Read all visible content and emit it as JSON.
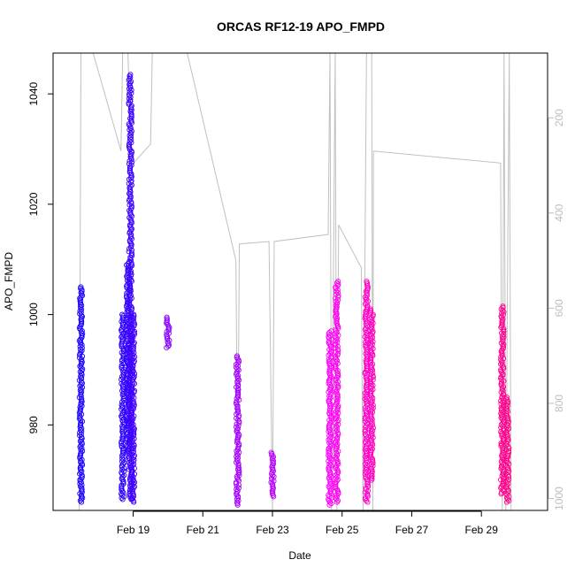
{
  "chart_data": {
    "type": "scatter",
    "title": "ORCAS RF12-19 APO_FMPD",
    "xlabel": "Date",
    "ylabel": "APO_FMPD",
    "x_ticks": [
      "Feb 19",
      "Feb 21",
      "Feb 23",
      "Feb 25",
      "Feb 27",
      "Feb 29"
    ],
    "x_tick_days": [
      19,
      21,
      23,
      25,
      27,
      29
    ],
    "xlim_days": [
      16.7,
      30.9
    ],
    "y_ticks": [
      980,
      1000,
      1020,
      1040
    ],
    "ylim": [
      964.5,
      1047.4
    ],
    "y2_ticks": [
      200,
      400,
      600,
      800,
      1000
    ],
    "y2lim": [
      1025,
      64
    ],
    "y2_reversed": true,
    "y2_label": "",
    "grid": false,
    "legend": "none",
    "secondary_line_color": "#c0c0c0",
    "flights": [
      {
        "day": 17.5,
        "ymin": 966.0,
        "ymax": 1005.0,
        "color": "#1a00ff"
      },
      {
        "day": 18.7,
        "ymin": 966.5,
        "ymax": 1000.0,
        "color": "#2b00ff"
      },
      {
        "day": 18.85,
        "ymin": 975.0,
        "ymax": 1009.5,
        "color": "#3000ff"
      },
      {
        "day": 18.92,
        "ymin": 966.5,
        "ymax": 1043.5,
        "color": "#3a00ff"
      },
      {
        "day": 19.0,
        "ymin": 966.0,
        "ymax": 1000.0,
        "color": "#4400ff"
      },
      {
        "day": 20.0,
        "ymin": 994.0,
        "ymax": 999.5,
        "color": "#8800ff"
      },
      {
        "day": 22.0,
        "ymin": 965.5,
        "ymax": 992.5,
        "color": "#a600ff"
      },
      {
        "day": 23.0,
        "ymin": 967.0,
        "ymax": 975.0,
        "color": "#bb00ff"
      },
      {
        "day": 24.65,
        "ymin": 965.5,
        "ymax": 997.0,
        "color": "#ff00ff"
      },
      {
        "day": 24.85,
        "ymin": 966.0,
        "ymax": 1006.0,
        "color": "#ff00f0"
      },
      {
        "day": 25.7,
        "ymin": 966.0,
        "ymax": 1006.0,
        "color": "#ff00c8"
      },
      {
        "day": 25.85,
        "ymin": 970.0,
        "ymax": 1001.0,
        "color": "#ff00c0"
      },
      {
        "day": 29.6,
        "ymin": 967.5,
        "ymax": 1001.5,
        "color": "#ff0090"
      },
      {
        "day": 29.75,
        "ymin": 966.0,
        "ymax": 985.0,
        "color": "#ff0088"
      }
    ],
    "altitude_trace": [
      [
        17.45,
        1025
      ],
      [
        17.5,
        64
      ],
      [
        17.85,
        64
      ],
      [
        18.65,
        270
      ],
      [
        18.7,
        64
      ],
      [
        18.85,
        64
      ],
      [
        18.95,
        300
      ],
      [
        19.5,
        255
      ],
      [
        19.55,
        64
      ],
      [
        20.55,
        64
      ],
      [
        21.95,
        500
      ],
      [
        22.0,
        965
      ],
      [
        22.05,
        465
      ],
      [
        22.9,
        460
      ],
      [
        23.0,
        1025
      ],
      [
        23.05,
        460
      ],
      [
        24.6,
        445
      ],
      [
        24.65,
        64
      ],
      [
        24.7,
        1025
      ],
      [
        24.8,
        64
      ],
      [
        24.85,
        1025
      ],
      [
        24.9,
        425
      ],
      [
        25.55,
        515
      ],
      [
        25.6,
        1025
      ],
      [
        25.7,
        64
      ],
      [
        25.85,
        64
      ],
      [
        25.88,
        1025
      ],
      [
        25.9,
        270
      ],
      [
        29.55,
        295
      ],
      [
        29.6,
        1025
      ],
      [
        29.65,
        64
      ],
      [
        29.7,
        1025
      ],
      [
        29.8,
        64
      ],
      [
        29.85,
        1025
      ]
    ]
  }
}
